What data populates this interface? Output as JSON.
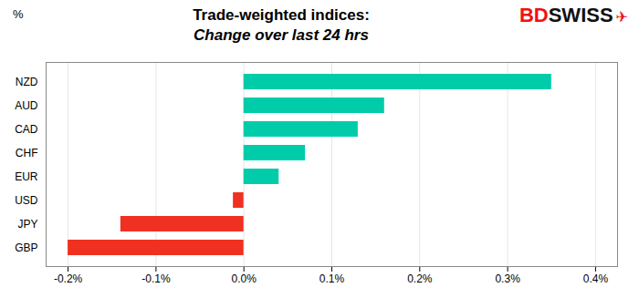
{
  "chart_data": {
    "type": "bar",
    "orientation": "horizontal",
    "title": "Trade-weighted indices:",
    "subtitle": "Change over last 24 hrs",
    "ylabel": "%",
    "categories": [
      "GBP",
      "JPY",
      "USD",
      "EUR",
      "CHF",
      "CAD",
      "AUD",
      "NZD"
    ],
    "values": [
      -0.002,
      -0.0014,
      -0.00012,
      0.0004,
      0.0007,
      0.0013,
      0.0016,
      0.0035
    ],
    "colors": [
      "#f03020",
      "#f03020",
      "#f03020",
      "#00ccaa",
      "#00ccaa",
      "#00ccaa",
      "#00ccaa",
      "#00ccaa"
    ],
    "xlim": [
      -0.00225,
      0.00425
    ],
    "xticks": [
      {
        "value": -0.002,
        "label": "-0.2%"
      },
      {
        "value": -0.001,
        "label": "-0.1%"
      },
      {
        "value": 0.0,
        "label": "0.0%"
      },
      {
        "value": 0.001,
        "label": "0.1%"
      },
      {
        "value": 0.002,
        "label": "0.2%"
      },
      {
        "value": 0.003,
        "label": "0.3%"
      },
      {
        "value": 0.004,
        "label": "0.4%"
      }
    ],
    "grid": true,
    "annotations": [
      {
        "text": "BD",
        "color": "#ee1111"
      },
      {
        "text": "SWISS",
        "color": "#111111"
      },
      {
        "text": "✈",
        "color": "#ee1111"
      }
    ]
  }
}
